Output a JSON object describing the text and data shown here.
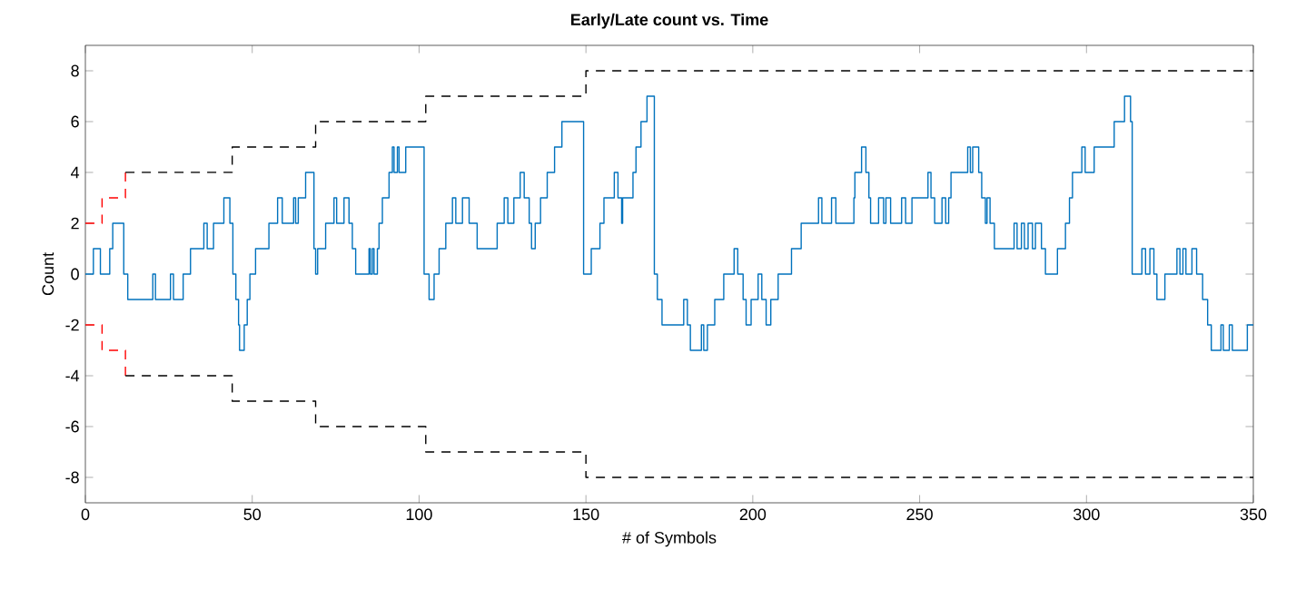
{
  "chart_data": {
    "type": "step",
    "title": "Early/Late count vs. Time",
    "xlabel": "# of Symbols",
    "ylabel": "Count",
    "xlim": [
      0,
      350
    ],
    "ylim": [
      -9,
      9
    ],
    "xticks": [
      0,
      50,
      100,
      150,
      200,
      250,
      300,
      350
    ],
    "yticks": [
      -8,
      -6,
      -4,
      -2,
      0,
      2,
      4,
      6,
      8
    ],
    "grid": false,
    "series": [
      {
        "color": "#0072bd",
        "line_style": "solid",
        "x": [
          0,
          2.4,
          4.5,
          7.3,
          8.2,
          11.5,
          12.7,
          20.2,
          21,
          25.5,
          26.4,
          29.3,
          31.5,
          35.5,
          36.5,
          38.4,
          41.5,
          43.3,
          44.2,
          45.1,
          45.9,
          46.2,
          47.6,
          48.5,
          49.3,
          51,
          55,
          57.6,
          59,
          62.4,
          63,
          63.8,
          66,
          68.5,
          69,
          69.6,
          72,
          74.5,
          75.3,
          77.5,
          79,
          80,
          81,
          85,
          85.4,
          86,
          86.5,
          87.5,
          88,
          89,
          91,
          92,
          92.5,
          93.5,
          94,
          96,
          101.5,
          103,
          104.5,
          106,
          108,
          110,
          111,
          113,
          115,
          117.4,
          123.4,
          125.5,
          126.6,
          128.4,
          130.3,
          131.5,
          133,
          133.7,
          134.8,
          136.4,
          138.4,
          140.6,
          142.8,
          149.3,
          151.6,
          154.2,
          155.4,
          158.5,
          159.6,
          160.7,
          161,
          164.1,
          165,
          166.5,
          168.3,
          170.5,
          171.4,
          172.8,
          179.3,
          180.4,
          181.3,
          184.6,
          185.3,
          186.4,
          188.6,
          191.3,
          194.4,
          195.5,
          197.1,
          198,
          199.5,
          201.6,
          202.7,
          204,
          205.4,
          207.6,
          211.6,
          214.5,
          219.7,
          220.7,
          223.6,
          224.9,
          230.3,
          230.6,
          232.6,
          233.9,
          234.8,
          235.3,
          237.7,
          239.2,
          239.9,
          241.3,
          244.6,
          245.8,
          247.7,
          252.5,
          253.4,
          254.5,
          256.7,
          257.8,
          258.7,
          259.4,
          264.4,
          265.2,
          265.9,
          267.7,
          268.6,
          269.7,
          270.2,
          271.1,
          272.4,
          278.3,
          279.2,
          280.5,
          281.4,
          282.5,
          283.8,
          284.7,
          286.5,
          287.7,
          291.3,
          293.7,
          294.9,
          295.8,
          298.6,
          299.6,
          302.3,
          308.3,
          311.4,
          313.2,
          313.7,
          316.6,
          317.7,
          319,
          320.2,
          321.1,
          323.5,
          327.1,
          328,
          328.9,
          329.8,
          331.6,
          333,
          334.8,
          336.3,
          337.4,
          340.3,
          341,
          342.8,
          343.7,
          348.2,
          350
        ],
        "values": [
          0,
          1,
          0,
          1,
          2,
          0,
          -1,
          0,
          -1,
          0,
          -1,
          0,
          1,
          2,
          1,
          2,
          3,
          2,
          0,
          -1,
          -2,
          -3,
          -2,
          -1,
          0,
          1,
          2,
          3,
          2,
          3,
          2,
          3,
          4,
          1,
          0,
          1,
          2,
          3,
          2,
          3,
          2,
          1,
          0,
          1,
          0,
          1,
          0,
          1,
          2,
          3,
          4,
          5,
          4,
          5,
          4,
          5,
          0,
          -1,
          0,
          1,
          2,
          3,
          2,
          3,
          2,
          1,
          2,
          3,
          2,
          3,
          4,
          3,
          2,
          1,
          2,
          3,
          4,
          5,
          6,
          0,
          1,
          2,
          3,
          4,
          3,
          2,
          3,
          4,
          5,
          6,
          7,
          0,
          -1,
          -2,
          -1,
          -2,
          -3,
          -2,
          -3,
          -2,
          -1,
          0,
          1,
          0,
          -1,
          -2,
          -1,
          0,
          -1,
          -2,
          -1,
          0,
          1,
          2,
          3,
          2,
          3,
          2,
          3,
          4,
          5,
          4,
          3,
          2,
          3,
          2,
          3,
          2,
          3,
          2,
          3,
          4,
          3,
          2,
          3,
          2,
          3,
          4,
          5,
          4,
          5,
          4,
          3,
          2,
          3,
          2,
          1,
          2,
          1,
          2,
          1,
          2,
          1,
          2,
          1,
          0,
          1,
          2,
          3,
          4,
          5,
          4,
          5,
          6,
          7,
          6,
          0,
          1,
          0,
          1,
          0,
          -1,
          0,
          1,
          0,
          1,
          0,
          1,
          0,
          -1,
          -2,
          -3,
          -2,
          -3,
          -2,
          -3,
          -2,
          -2
        ]
      },
      {
        "color": "#ff0000",
        "line_style": "dashed",
        "x": [
          0,
          5,
          12
        ],
        "values": [
          2,
          3,
          4
        ]
      },
      {
        "color": "#ff0000",
        "line_style": "dashed",
        "x": [
          0,
          5,
          12
        ],
        "values": [
          -2,
          -3,
          -4
        ]
      },
      {
        "color": "#000000",
        "line_style": "dashed",
        "x": [
          12,
          44,
          69,
          102,
          150,
          350
        ],
        "values": [
          4,
          5,
          6,
          7,
          8,
          8
        ]
      },
      {
        "color": "#000000",
        "line_style": "dashed",
        "x": [
          12,
          44,
          69,
          102,
          150,
          350
        ],
        "values": [
          -4,
          -5,
          -6,
          -7,
          -8,
          -8
        ]
      }
    ]
  }
}
